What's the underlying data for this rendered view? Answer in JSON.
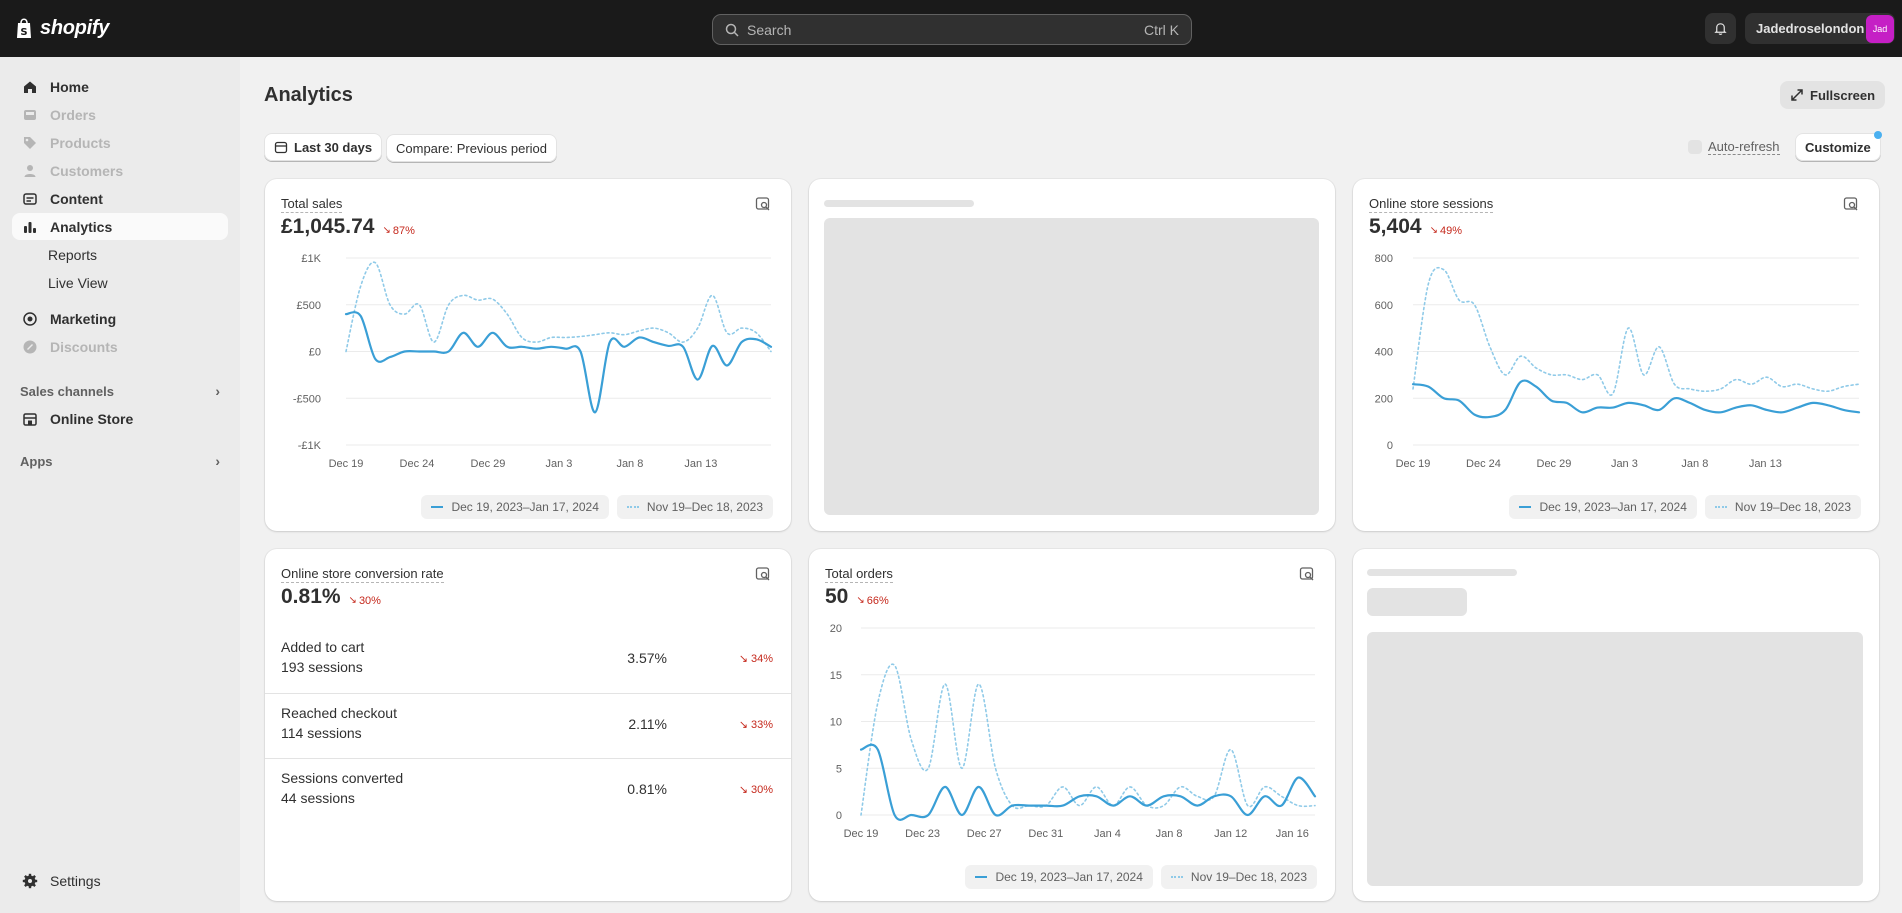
{
  "app": {
    "brand": "shopify"
  },
  "topbar": {
    "search_placeholder": "Search",
    "search_shortcut": "Ctrl K",
    "store_name": "Jadedroselondon",
    "avatar": "Jad"
  },
  "sidebar": {
    "items": [
      {
        "label": "Home",
        "icon": "home-icon"
      },
      {
        "label": "Orders",
        "icon": "inbox-icon"
      },
      {
        "label": "Products",
        "icon": "tag-icon"
      },
      {
        "label": "Customers",
        "icon": "person-icon"
      },
      {
        "label": "Content",
        "icon": "content-icon"
      },
      {
        "label": "Analytics",
        "icon": "bar-chart-icon"
      },
      {
        "label": "Reports"
      },
      {
        "label": "Live View"
      },
      {
        "label": "Marketing",
        "icon": "target-icon"
      },
      {
        "label": "Discounts",
        "icon": "discount-icon"
      }
    ],
    "sales_channels": "Sales channels",
    "online_store": "Online Store",
    "apps": "Apps",
    "settings": "Settings"
  },
  "page": {
    "title": "Analytics",
    "fullscreen": "Fullscreen",
    "date_range": "Last 30 days",
    "compare": "Compare: Previous period",
    "auto_refresh": "Auto-refresh",
    "customize": "Customize"
  },
  "legend": {
    "current": "Dec 19, 2023–Jan 17, 2024",
    "previous": "Nov 19–Dec 18, 2023"
  },
  "cards": {
    "total_sales": {
      "title": "Total sales",
      "value": "£1,045.74",
      "delta": "87%",
      "chart_data": {
        "type": "line",
        "y_ticks": [
          "£1K",
          "£500",
          "£0",
          "-£500",
          "-£1K"
        ],
        "ylim": [
          -1000,
          1000
        ],
        "x_ticks": [
          "Dec 19",
          "Dec 24",
          "Dec 29",
          "Jan 3",
          "Jan 8",
          "Jan 13"
        ],
        "series": [
          {
            "name": "Dec 19, 2023–Jan 17, 2024",
            "values": [
              400,
              380,
              -80,
              -60,
              0,
              0,
              0,
              0,
              200,
              50,
              200,
              50,
              50,
              30,
              50,
              30,
              0,
              -650,
              100,
              50,
              150,
              100,
              60,
              50,
              -300,
              60,
              -150,
              100,
              130,
              50
            ]
          },
          {
            "name": "Nov 19–Dec 18, 2023",
            "values": [
              0,
              700,
              950,
              500,
              400,
              500,
              100,
              500,
              600,
              550,
              560,
              400,
              150,
              100,
              150,
              150,
              160,
              180,
              200,
              180,
              220,
              250,
              200,
              100,
              250,
              600,
              200,
              250,
              200,
              0
            ]
          }
        ]
      }
    },
    "sessions": {
      "title": "Online store sessions",
      "value": "5,404",
      "delta": "49%",
      "chart_data": {
        "type": "line",
        "y_ticks": [
          "800",
          "600",
          "400",
          "200",
          "0"
        ],
        "ylim": [
          0,
          800
        ],
        "x_ticks": [
          "Dec 19",
          "Dec 24",
          "Dec 29",
          "Jan 3",
          "Jan 8",
          "Jan 13"
        ],
        "series": [
          {
            "name": "Dec 19, 2023–Jan 17, 2024",
            "values": [
              260,
              250,
              200,
              190,
              130,
              120,
              150,
              270,
              250,
              190,
              180,
              140,
              160,
              160,
              180,
              170,
              150,
              200,
              180,
              150,
              140,
              160,
              170,
              150,
              140,
              160,
              180,
              170,
              150,
              140
            ]
          },
          {
            "name": "Nov 19–Dec 18, 2023",
            "values": [
              240,
              690,
              750,
              620,
              600,
              420,
              300,
              380,
              330,
              300,
              300,
              280,
              300,
              220,
              500,
              300,
              420,
              260,
              240,
              230,
              240,
              280,
              260,
              290,
              250,
              260,
              240,
              230,
              250,
              260
            ]
          }
        ]
      }
    },
    "conversion": {
      "title": "Online store conversion rate",
      "value": "0.81%",
      "delta": "30%",
      "rows": [
        {
          "label": "Added to cart",
          "sub": "193 sessions",
          "pct": "3.57%",
          "delta": "34%"
        },
        {
          "label": "Reached checkout",
          "sub": "114 sessions",
          "pct": "2.11%",
          "delta": "33%"
        },
        {
          "label": "Sessions converted",
          "sub": "44 sessions",
          "pct": "0.81%",
          "delta": "30%"
        }
      ]
    },
    "orders": {
      "title": "Total orders",
      "value": "50",
      "delta": "66%",
      "chart_data": {
        "type": "line",
        "y_ticks": [
          "20",
          "15",
          "10",
          "5",
          "0"
        ],
        "ylim": [
          0,
          20
        ],
        "x_ticks": [
          "Dec 19",
          "Dec 23",
          "Dec 27",
          "Dec 31",
          "Jan 4",
          "Jan 8",
          "Jan 12",
          "Jan 16"
        ],
        "series": [
          {
            "name": "Dec 19, 2023–Jan 17, 2024",
            "values": [
              7,
              7,
              0,
              0,
              0,
              3,
              0,
              3,
              0,
              1,
              1,
              1,
              1,
              2,
              2,
              1,
              2,
              1,
              2,
              2,
              1,
              2,
              2,
              0,
              2,
              1,
              4,
              2
            ]
          },
          {
            "name": "Nov 19–Dec 18, 2023",
            "values": [
              0,
              12,
              16,
              8,
              5,
              14,
              5,
              14,
              5,
              1,
              1,
              1,
              3,
              1,
              3,
              1,
              3,
              1,
              1,
              3,
              2,
              2,
              7,
              1,
              3,
              2,
              1,
              1
            ]
          }
        ]
      }
    }
  },
  "colors": {
    "current": "#3a9fd6",
    "previous": "#8fcae8",
    "negative": "#c5281c"
  }
}
